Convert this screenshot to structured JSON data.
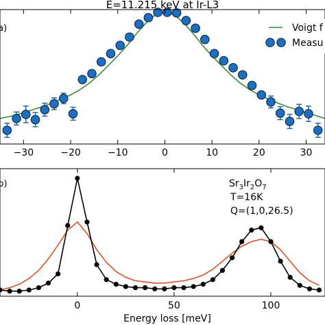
{
  "chart_data": [
    {
      "type": "scatter",
      "panel_label": "(a)",
      "title": "E=11.215 keV at Ir-L3",
      "xlim": [
        -35,
        34
      ],
      "x_ticks": [
        -30,
        -20,
        -10,
        0,
        10,
        20,
        30
      ],
      "ylim": [
        0.0,
        1.0
      ],
      "grid": false,
      "legend": {
        "position": "top-right",
        "entries": [
          "Voigt f",
          "Measu"
        ]
      },
      "series": [
        {
          "name": "Voigt f",
          "kind": "line",
          "color": "#3a8a3a",
          "x": [
            -35,
            -32,
            -30,
            -28,
            -26,
            -24,
            -22,
            -20,
            -18,
            -16,
            -14,
            -12,
            -10,
            -8,
            -6,
            -4,
            -2,
            0,
            2,
            4,
            6,
            8,
            10,
            12,
            14,
            16,
            18,
            20,
            22,
            24,
            26,
            28,
            30,
            32,
            34
          ],
          "y": [
            0.1,
            0.125,
            0.15,
            0.175,
            0.2,
            0.23,
            0.265,
            0.3,
            0.345,
            0.4,
            0.47,
            0.55,
            0.63,
            0.72,
            0.82,
            0.91,
            0.98,
            1.0,
            0.98,
            0.91,
            0.82,
            0.72,
            0.63,
            0.55,
            0.47,
            0.4,
            0.345,
            0.3,
            0.265,
            0.23,
            0.2,
            0.175,
            0.15,
            0.125,
            0.1
          ]
        },
        {
          "name": "Measu",
          "kind": "errorbar",
          "color": "#1f6fc0",
          "x": [
            -33.5,
            -31.5,
            -29.5,
            -27.5,
            -25.5,
            -23.5,
            -21.5,
            -19.5,
            -17.5,
            -15.5,
            -13.5,
            -11.5,
            -9.5,
            -7.5,
            -5.5,
            -3.5,
            -1.5,
            0.5,
            2.5,
            4.5,
            6.5,
            8.5,
            10.5,
            12.5,
            14.5,
            16.5,
            18.5,
            20.5,
            22.5,
            24.5,
            26.5,
            28.5,
            30.5,
            32.5
          ],
          "y": [
            0.0,
            0.1,
            0.135,
            0.09,
            0.175,
            0.225,
            0.27,
            0.14,
            0.43,
            0.48,
            0.58,
            0.65,
            0.72,
            0.79,
            0.9,
            0.955,
            1.0,
            1.0,
            0.995,
            0.93,
            0.865,
            0.77,
            0.65,
            0.59,
            0.53,
            0.47,
            0.38,
            0.3,
            0.24,
            0.145,
            0.075,
            0.16,
            0.14,
            0.0
          ],
          "yerr": [
            0.06,
            0.055,
            0.07,
            0.06,
            0.055,
            0.05,
            0.045,
            0.055,
            0.02,
            0.02,
            0.02,
            0.02,
            0.02,
            0.02,
            0.02,
            0.02,
            0.02,
            0.02,
            0.02,
            0.02,
            0.02,
            0.02,
            0.02,
            0.02,
            0.02,
            0.02,
            0.02,
            0.02,
            0.05,
            0.055,
            0.06,
            0.06,
            0.065,
            0.06
          ]
        }
      ]
    },
    {
      "type": "line",
      "panel_label": "(b)",
      "xlabel": "Energy loss [meV]",
      "xlim": [
        -40,
        128
      ],
      "x_ticks": [
        0,
        50,
        100
      ],
      "ylim": [
        0.0,
        1.0
      ],
      "grid": false,
      "annotation": {
        "formula": "Sr3Ir2O7",
        "temperature": "T=16K",
        "q": "Q=(1,0,26.5)"
      },
      "series": [
        {
          "kind": "line-markers",
          "color": "#000000",
          "x": [
            -40,
            -35,
            -30,
            -25,
            -20,
            -15,
            -10,
            -5,
            0,
            5,
            10,
            15,
            20,
            25,
            30,
            35,
            40,
            45,
            50,
            55,
            60,
            65,
            70,
            75,
            80,
            85,
            90,
            95,
            100,
            105,
            110,
            115,
            120,
            125
          ],
          "y": [
            0.03,
            0.02,
            0.02,
            0.03,
            0.05,
            0.09,
            0.17,
            0.59,
            1.0,
            0.62,
            0.25,
            0.12,
            0.08,
            0.06,
            0.05,
            0.05,
            0.04,
            0.04,
            0.05,
            0.05,
            0.06,
            0.08,
            0.12,
            0.2,
            0.31,
            0.45,
            0.55,
            0.57,
            0.45,
            0.28,
            0.14,
            0.07,
            0.04,
            0.03
          ]
        },
        {
          "kind": "line",
          "color": "#d4522a",
          "x": [
            -40,
            -35,
            -30,
            -25,
            -20,
            -15,
            -10,
            -5,
            0,
            5,
            10,
            15,
            20,
            25,
            30,
            35,
            40,
            45,
            50,
            55,
            60,
            65,
            70,
            75,
            80,
            85,
            90,
            95,
            100,
            105,
            110,
            115,
            120,
            125
          ],
          "y": [
            0.03,
            0.05,
            0.08,
            0.13,
            0.2,
            0.3,
            0.42,
            0.55,
            0.62,
            0.52,
            0.38,
            0.27,
            0.19,
            0.14,
            0.11,
            0.1,
            0.09,
            0.09,
            0.1,
            0.11,
            0.13,
            0.16,
            0.21,
            0.28,
            0.35,
            0.41,
            0.45,
            0.47,
            0.45,
            0.38,
            0.28,
            0.18,
            0.11,
            0.07
          ]
        }
      ]
    }
  ]
}
